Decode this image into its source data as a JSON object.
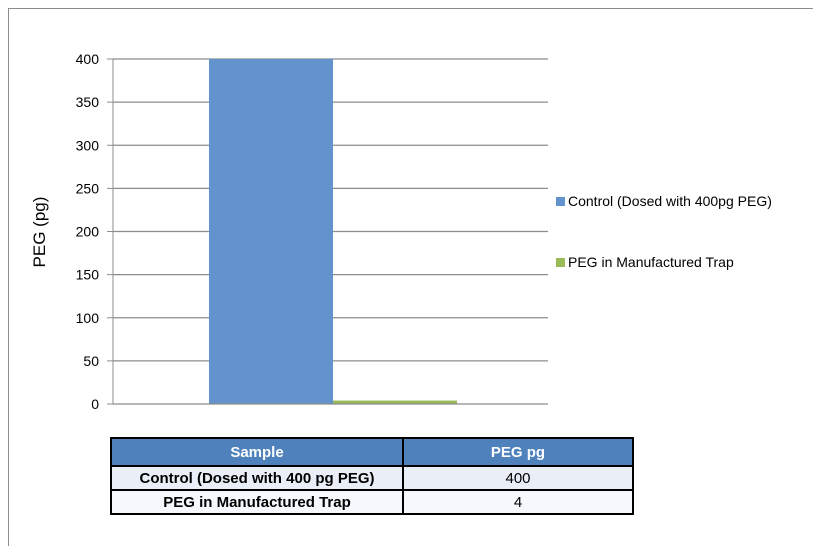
{
  "chart_data": {
    "type": "bar",
    "ylabel": "PEG (pg)",
    "ylim": [
      0,
      400
    ],
    "yticks": [
      0,
      50,
      100,
      150,
      200,
      250,
      300,
      350,
      400
    ],
    "grid": true,
    "legend_position": "right",
    "series": [
      {
        "name": "Control (Dosed with 400pg PEG)",
        "value": 400,
        "color": "#6293cc"
      },
      {
        "name": "PEG in Manufactured Trap",
        "value": 4,
        "color": "#9bbb59"
      }
    ]
  },
  "table": {
    "headers": [
      "Sample",
      "PEG pg"
    ],
    "rows": [
      [
        "Control (Dosed with 400 pg PEG)",
        "400"
      ],
      [
        "PEG in Manufactured Trap",
        "4"
      ]
    ]
  }
}
